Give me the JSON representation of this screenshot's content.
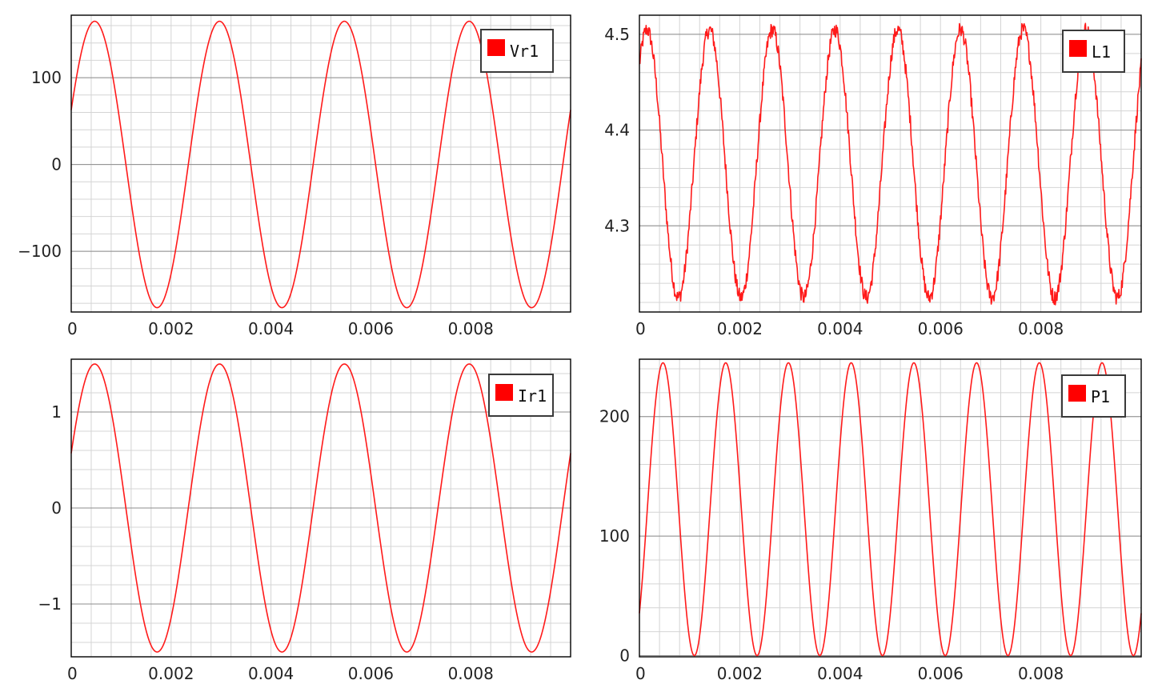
{
  "colors": {
    "series": "#ff1a1a",
    "legend_swatch": "#ff0000",
    "grid_minor": "#d4d4d4",
    "grid_major": "#8c8c8c",
    "frame": "#000000",
    "background": "#ffffff"
  },
  "chart_data": [
    {
      "type": "line",
      "grid": true,
      "legend_position": "top-right",
      "xlim": [
        0,
        0.01
      ],
      "ylim": [
        -170,
        172
      ],
      "x_ticks": [
        0,
        0.002,
        0.004,
        0.006,
        0.008
      ],
      "x_tick_labels": [
        "0",
        "0.002",
        "0.004",
        "0.006",
        "0.008"
      ],
      "y_ticks": [
        100,
        0,
        -100
      ],
      "y_tick_labels": [
        "100",
        "0",
        "−100"
      ],
      "series": [
        {
          "name": "Vr1",
          "waveform": "sine",
          "amplitude": 165,
          "offset": 0,
          "frequency_hz": 400,
          "phase_rad": 0.39,
          "noise": 0,
          "x_end": 0.01
        }
      ]
    },
    {
      "type": "line",
      "grid": true,
      "legend_position": "top-right",
      "xlim": [
        0,
        0.01
      ],
      "ylim": [
        4.21,
        4.52
      ],
      "x_ticks": [
        0,
        0.002,
        0.004,
        0.006,
        0.008
      ],
      "x_tick_labels": [
        "0",
        "0.002",
        "0.004",
        "0.006",
        "0.008"
      ],
      "y_ticks": [
        4.5,
        4.4,
        4.3
      ],
      "y_tick_labels": [
        "4.5",
        "4.4",
        "4.3"
      ],
      "series": [
        {
          "name": "L1",
          "waveform": "cosine",
          "amplitude": 0.14,
          "offset": 4.365,
          "frequency_hz": 800,
          "phase_rad": -0.75,
          "noise": 0.008,
          "x_end": 0.01
        }
      ]
    },
    {
      "type": "line",
      "grid": true,
      "legend_position": "top-right",
      "xlim": [
        0,
        0.01
      ],
      "ylim": [
        -1.55,
        1.55
      ],
      "x_ticks": [
        0,
        0.002,
        0.004,
        0.006,
        0.008
      ],
      "x_tick_labels": [
        "0",
        "0.002",
        "0.004",
        "0.006",
        "0.008"
      ],
      "y_ticks": [
        1,
        0,
        -1
      ],
      "y_tick_labels": [
        "1",
        "0",
        "−1"
      ],
      "series": [
        {
          "name": "Ir1",
          "waveform": "sine",
          "amplitude": 1.5,
          "offset": 0,
          "frequency_hz": 400,
          "phase_rad": 0.39,
          "noise": 0,
          "x_end": 0.01
        }
      ]
    },
    {
      "type": "line",
      "grid": true,
      "legend_position": "top-right",
      "xlim": [
        0,
        0.01
      ],
      "ylim": [
        -1,
        248
      ],
      "x_ticks": [
        0,
        0.002,
        0.004,
        0.006,
        0.008
      ],
      "x_tick_labels": [
        "0",
        "0.002",
        "0.004",
        "0.006",
        "0.008"
      ],
      "y_ticks": [
        200,
        100,
        0
      ],
      "y_tick_labels": [
        "200",
        "100",
        "0"
      ],
      "series": [
        {
          "name": "P1",
          "waveform": "sine_squared",
          "amplitude": 245,
          "offset": 0,
          "frequency_hz": 400,
          "phase_rad": 0.39,
          "noise": 0,
          "x_end": 0.01
        }
      ]
    }
  ]
}
